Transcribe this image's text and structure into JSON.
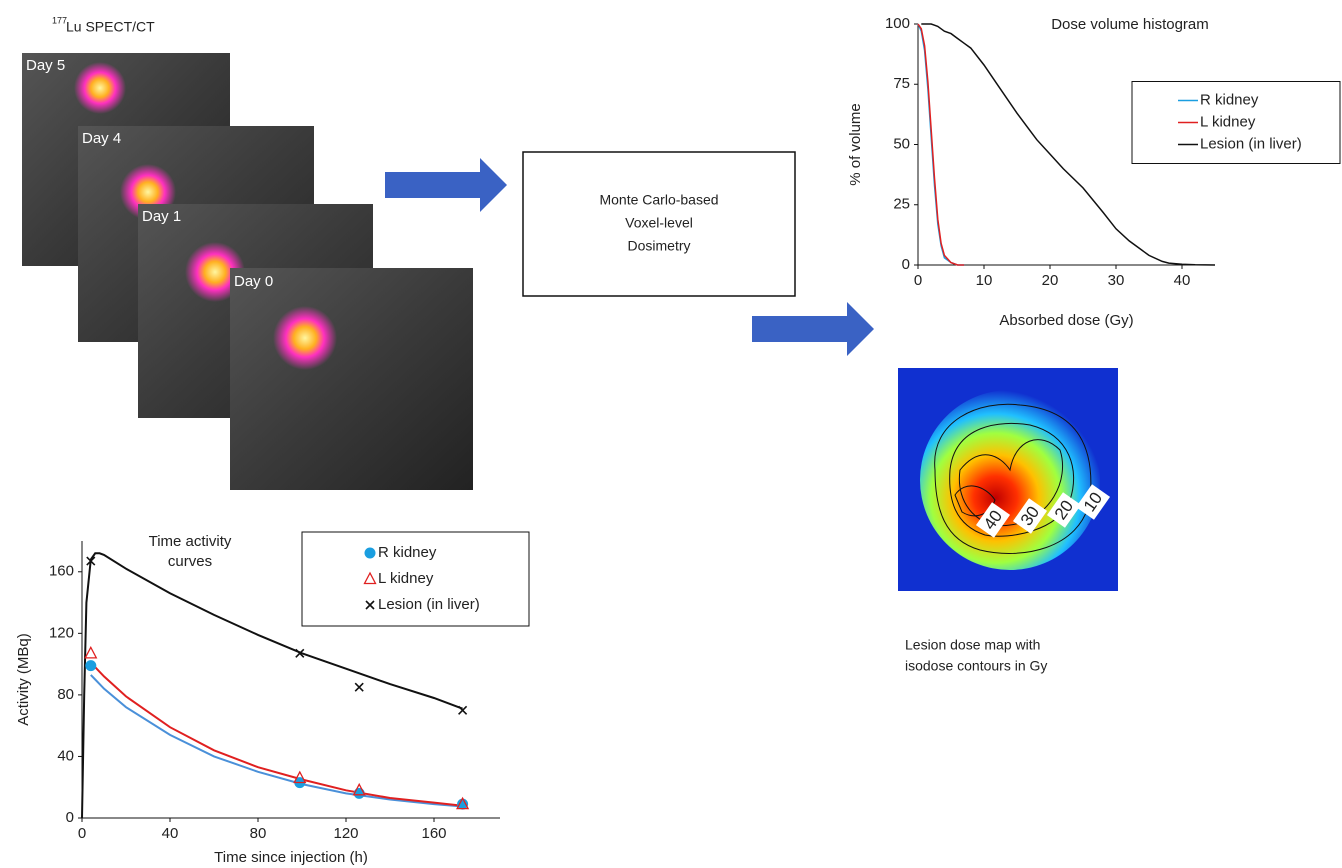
{
  "header": {
    "isotope": "177",
    "label": "Lu SPECT/CT"
  },
  "images": {
    "day_labels": [
      "Day 5",
      "Day 4",
      "Day 1",
      "Day 0"
    ]
  },
  "process_box": {
    "lines": [
      "Monte Carlo-based",
      "Voxel-level",
      "Dosimetry"
    ]
  },
  "dose_map": {
    "contour_labels": [
      40,
      30,
      20,
      10
    ],
    "caption_lines": [
      "Lesion dose map with",
      "isodose contours in Gy"
    ]
  },
  "chart_data": [
    {
      "type": "line",
      "title": "Dose volume histogram",
      "xlabel": "Absorbed dose (Gy)",
      "ylabel": "% of volume",
      "xlim": [
        0,
        45
      ],
      "ylim": [
        0,
        100
      ],
      "xticks": [
        0,
        10,
        20,
        30,
        40
      ],
      "yticks": [
        0,
        25,
        50,
        75,
        100
      ],
      "grid": false,
      "legend": "right",
      "x": [
        0,
        0.5,
        1,
        1.5,
        2,
        2.5,
        3,
        3.5,
        4,
        5,
        6,
        7,
        8,
        10,
        12,
        15,
        18,
        20,
        22,
        25,
        28,
        30,
        32,
        35,
        37,
        38,
        40,
        42,
        45
      ],
      "series": [
        {
          "name": "R kidney",
          "color": "#1a9ee0",
          "values": [
            100,
            97,
            89,
            73,
            53,
            33,
            17,
            8,
            3,
            1,
            0,
            0,
            null,
            null,
            null,
            null,
            null,
            null,
            null,
            null,
            null,
            null,
            null,
            null,
            null,
            null,
            null,
            null,
            null
          ]
        },
        {
          "name": "L kidney",
          "color": "#e02020",
          "values": [
            100,
            98,
            91,
            76,
            56,
            36,
            19,
            9,
            4,
            1,
            0,
            0,
            null,
            null,
            null,
            null,
            null,
            null,
            null,
            null,
            null,
            null,
            null,
            null,
            null,
            null,
            null,
            null,
            null
          ]
        },
        {
          "name": "Lesion (in liver)",
          "color": "#111111",
          "values": [
            null,
            100,
            100,
            100,
            100,
            99.5,
            99,
            98,
            97,
            96,
            94,
            92,
            90,
            83,
            75,
            63,
            52,
            46,
            40,
            32,
            22,
            15,
            10,
            4,
            1.5,
            0.8,
            0.3,
            0.1,
            0
          ]
        }
      ]
    },
    {
      "type": "scatter",
      "title": "Time activity curves",
      "xlabel": "Time since injection (h)",
      "ylabel": "Activity  (MBq)",
      "xlim": [
        0,
        190
      ],
      "ylim": [
        0,
        180
      ],
      "xticks": [
        0,
        40,
        80,
        120,
        160
      ],
      "yticks": [
        0,
        40,
        80,
        120,
        160
      ],
      "grid": false,
      "legend": "upper right",
      "x": [
        4,
        99,
        126,
        173
      ],
      "series": [
        {
          "name": "R kidney",
          "color": "#1a9ee0",
          "marker": "circle",
          "values": [
            99,
            23,
            16,
            9
          ]
        },
        {
          "name": "L kidney",
          "color": "#e02020",
          "marker": "triangle",
          "values": [
            107,
            26,
            18,
            9
          ]
        },
        {
          "name": "Lesion (in liver)",
          "color": "#111111",
          "marker": "x",
          "values": [
            167,
            107,
            85,
            70
          ]
        }
      ],
      "fit_x": [
        0,
        1,
        2,
        4,
        6,
        8,
        10,
        20,
        40,
        60,
        80,
        100,
        120,
        140,
        160,
        173
      ],
      "fits": [
        {
          "color": "#4a90d9",
          "values": [
            null,
            null,
            null,
            93,
            90,
            87,
            84,
            72,
            54,
            40,
            30,
            22,
            16,
            12,
            9,
            7.5
          ]
        },
        {
          "color": "#e02020",
          "values": [
            null,
            null,
            null,
            101,
            98,
            95,
            92,
            79,
            59,
            44,
            33,
            25,
            18,
            13,
            10,
            8
          ]
        },
        {
          "color": "#111111",
          "values": [
            0,
            80,
            140,
            168,
            172,
            172,
            171,
            162,
            146,
            132,
            119,
            107,
            97,
            87,
            78,
            71
          ]
        }
      ]
    }
  ]
}
